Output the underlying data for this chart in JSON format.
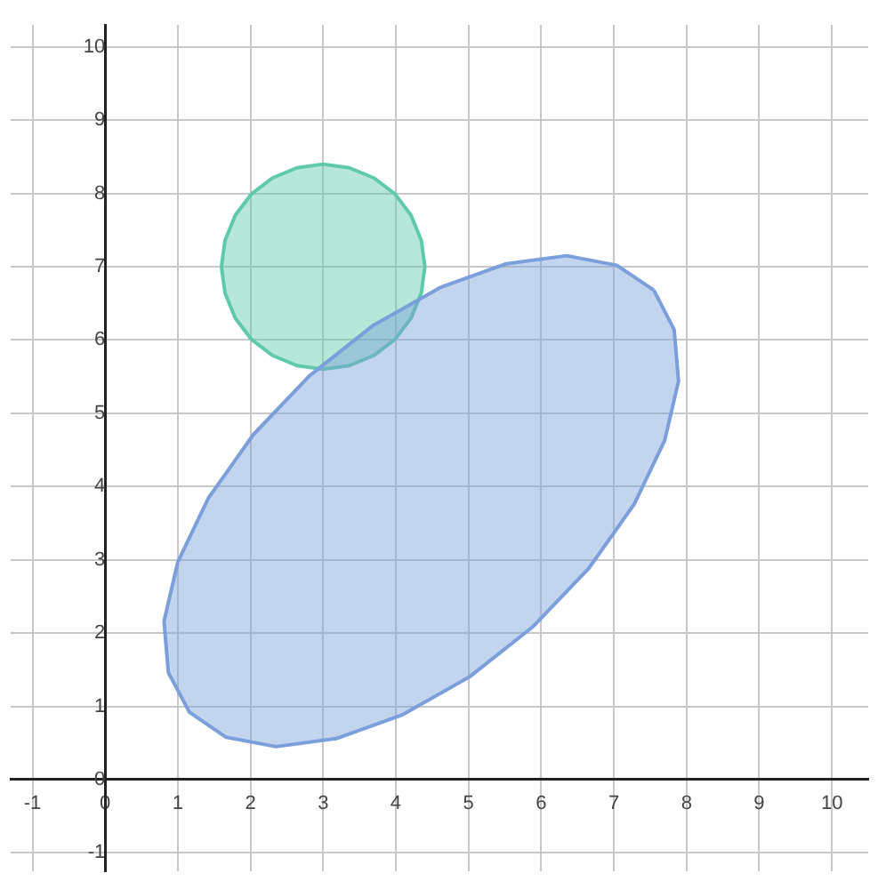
{
  "chart_data": {
    "type": "area",
    "xlim": [
      -1.3,
      10.5
    ],
    "ylim": [
      -1.25,
      10.3
    ],
    "xticks": [
      -1,
      0,
      1,
      2,
      3,
      4,
      5,
      6,
      7,
      8,
      9,
      10
    ],
    "yticks": [
      -1,
      0,
      1,
      2,
      3,
      4,
      5,
      6,
      7,
      8,
      9,
      10
    ],
    "grid": true,
    "legend": false,
    "marker": "none",
    "line_style": "solid",
    "series": [
      {
        "color": "#7a9fdb",
        "x": [
          7.55,
          7.04,
          6.35,
          5.52,
          4.62,
          3.69,
          2.81,
          2.04,
          1.42,
          1.0,
          0.81,
          0.87,
          1.16,
          1.66,
          2.35,
          3.18,
          4.08,
          5.01,
          5.89,
          6.66,
          7.28,
          7.7,
          7.89,
          7.83,
          7.55
        ],
        "values": [
          6.68,
          7.02,
          7.15,
          7.04,
          6.72,
          6.2,
          5.51,
          4.71,
          3.84,
          2.97,
          2.16,
          1.46,
          0.92,
          0.58,
          0.45,
          0.56,
          0.88,
          1.4,
          2.09,
          2.89,
          3.76,
          4.63,
          5.44,
          6.14,
          6.68
        ]
      },
      {
        "color": "#5fcaa9",
        "x": [
          4.4,
          4.35,
          4.21,
          3.99,
          3.7,
          3.36,
          3,
          2.64,
          2.3,
          2.01,
          1.79,
          1.65,
          1.6,
          1.65,
          1.79,
          2.01,
          2.3,
          2.64,
          3,
          3.36,
          3.7,
          3.99,
          4.21,
          4.35,
          4.4
        ],
        "values": [
          7,
          7.36,
          7.7,
          7.99,
          8.21,
          8.35,
          8.4,
          8.35,
          8.21,
          7.99,
          7.7,
          7.36,
          7,
          6.64,
          6.3,
          6.01,
          5.79,
          5.65,
          5.6,
          5.65,
          5.79,
          6.01,
          6.3,
          6.64,
          7
        ]
      }
    ]
  }
}
